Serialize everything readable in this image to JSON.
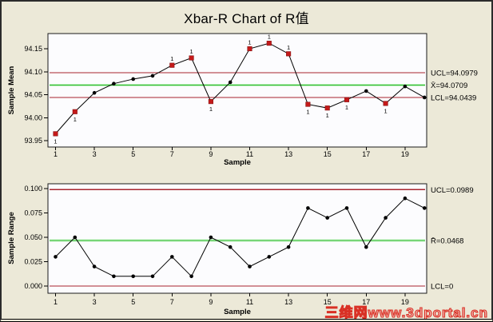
{
  "window": {
    "title": "Xbar-R Chart of R值"
  },
  "watermark": {
    "text": "三维网www.3dportal.cn"
  },
  "colors": {
    "background": "#ECE9D8",
    "panel": "#FCFCFE",
    "frame": "#1a1a1a",
    "limit_line": "#A8242E",
    "center_line": "#33BB33",
    "center_line_halo": "#BCEFBC",
    "series_line": "#000000",
    "point": "#000000",
    "ooc_point": "#C41A1A",
    "annotation": "#C89090",
    "watermark_red": "#D93025"
  },
  "chart_data": [
    {
      "type": "line",
      "id": "xbar",
      "title": "Xbar-R Chart of R值",
      "ylabel": "Sample Mean",
      "xlabel": "Sample",
      "x": [
        1,
        2,
        3,
        4,
        5,
        6,
        7,
        8,
        9,
        10,
        11,
        12,
        13,
        14,
        15,
        16,
        17,
        18,
        19,
        20
      ],
      "series": [
        {
          "name": "Sample Mean",
          "values": [
            93.965,
            94.013,
            94.054,
            94.074,
            94.084,
            94.091,
            94.114,
            94.13,
            94.035,
            94.077,
            94.15,
            94.162,
            94.139,
            94.029,
            94.021,
            94.039,
            94.058,
            94.031,
            94.068,
            94.044
          ]
        }
      ],
      "yticks": [
        "93.95",
        "94.00",
        "94.05",
        "94.10",
        "94.15"
      ],
      "xticks": [
        "1",
        "3",
        "5",
        "7",
        "9",
        "11",
        "13",
        "15",
        "17",
        "19"
      ],
      "ylim": [
        93.936,
        94.184
      ],
      "grid": false,
      "legend": "none",
      "limits": {
        "ucl": 94.0979,
        "center": 94.0709,
        "lcl": 94.0439
      },
      "limit_labels": {
        "ucl": "UCL=94.0979",
        "center": "X̄=94.0709",
        "lcl": "LCL=94.0439"
      },
      "out_of_control": [
        {
          "sample": 1,
          "label": "1",
          "pos": "below"
        },
        {
          "sample": 2,
          "label": "1",
          "pos": "below"
        },
        {
          "sample": 7,
          "label": "1",
          "pos": "above"
        },
        {
          "sample": 8,
          "label": "1",
          "pos": "above"
        },
        {
          "sample": 9,
          "label": "1",
          "pos": "below"
        },
        {
          "sample": 11,
          "label": "1",
          "pos": "above"
        },
        {
          "sample": 12,
          "label": "1",
          "pos": "above"
        },
        {
          "sample": 13,
          "label": "1",
          "pos": "above"
        },
        {
          "sample": 14,
          "label": "1",
          "pos": "below"
        },
        {
          "sample": 15,
          "label": "1",
          "pos": "below"
        },
        {
          "sample": 16,
          "label": "1",
          "pos": "below"
        },
        {
          "sample": 18,
          "label": "1",
          "pos": "below"
        }
      ]
    },
    {
      "type": "line",
      "id": "range",
      "title": "",
      "ylabel": "Sample Range",
      "xlabel": "Sample",
      "x": [
        1,
        2,
        3,
        4,
        5,
        6,
        7,
        8,
        9,
        10,
        11,
        12,
        13,
        14,
        15,
        16,
        17,
        18,
        19,
        20
      ],
      "series": [
        {
          "name": "Sample Range",
          "values": [
            0.03,
            0.05,
            0.02,
            0.01,
            0.01,
            0.01,
            0.03,
            0.01,
            0.05,
            0.04,
            0.02,
            0.03,
            0.04,
            0.08,
            0.07,
            0.08,
            0.04,
            0.07,
            0.09,
            0.08
          ]
        }
      ],
      "yticks": [
        "0.000",
        "0.025",
        "0.050",
        "0.075",
        "0.100"
      ],
      "xticks": [
        "1",
        "3",
        "5",
        "7",
        "9",
        "11",
        "13",
        "15",
        "17",
        "19"
      ],
      "ylim": [
        -0.007,
        0.105
      ],
      "grid": false,
      "legend": "none",
      "limits": {
        "ucl": 0.0989,
        "center": 0.0468,
        "lcl": 0
      },
      "limit_labels": {
        "ucl": "UCL=0.0989",
        "center": "R̄=0.0468",
        "lcl": "LCL=0"
      },
      "out_of_control": []
    }
  ]
}
